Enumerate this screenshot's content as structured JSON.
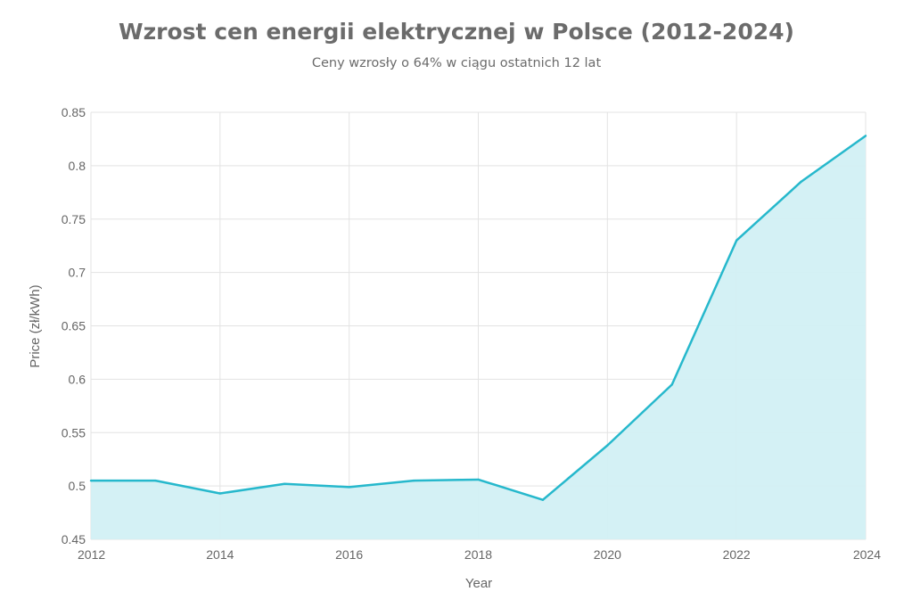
{
  "chart_data": {
    "type": "area",
    "title": "Wzrost cen energii elektrycznej w Polsce (2012-2024)",
    "subtitle": "Ceny wzrosły o 64% w ciągu ostatnich 12 lat",
    "xlabel": "Year",
    "ylabel": "Price (zł/kWh)",
    "x": [
      2012,
      2013,
      2014,
      2015,
      2016,
      2017,
      2018,
      2019,
      2020,
      2021,
      2022,
      2023,
      2024
    ],
    "series": [
      {
        "values": [
          0.505,
          0.505,
          0.493,
          0.502,
          0.499,
          0.505,
          0.506,
          0.487,
          0.538,
          0.595,
          0.73,
          0.785,
          0.828
        ]
      }
    ],
    "xlim": [
      2012,
      2024
    ],
    "ylim": [
      0.45,
      0.85
    ],
    "x_ticks": [
      "2012",
      "2014",
      "2016",
      "2018",
      "2020",
      "2022",
      "2024"
    ],
    "y_ticks": [
      "0.45",
      "0.5",
      "0.55",
      "0.6",
      "0.65",
      "0.7",
      "0.75",
      "0.8",
      "0.85"
    ],
    "grid": true,
    "legend": "none",
    "colors": {
      "line": "#26b8cc",
      "fill": "#d2f0f4",
      "grid": "#e3e3e3",
      "text": "#666666"
    }
  }
}
